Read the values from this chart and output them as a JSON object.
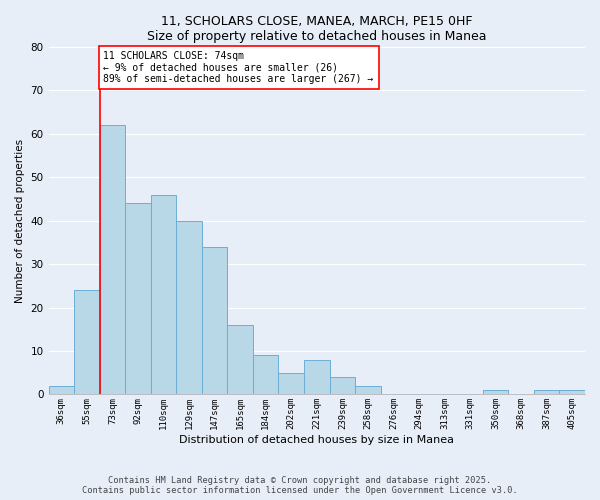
{
  "title1": "11, SCHOLARS CLOSE, MANEA, MARCH, PE15 0HF",
  "title2": "Size of property relative to detached houses in Manea",
  "xlabel": "Distribution of detached houses by size in Manea",
  "ylabel": "Number of detached properties",
  "bins": [
    "36sqm",
    "55sqm",
    "73sqm",
    "92sqm",
    "110sqm",
    "129sqm",
    "147sqm",
    "165sqm",
    "184sqm",
    "202sqm",
    "221sqm",
    "239sqm",
    "258sqm",
    "276sqm",
    "294sqm",
    "313sqm",
    "331sqm",
    "350sqm",
    "368sqm",
    "387sqm",
    "405sqm"
  ],
  "values": [
    2,
    24,
    62,
    44,
    46,
    40,
    34,
    16,
    9,
    5,
    8,
    4,
    2,
    0,
    0,
    0,
    0,
    1,
    0,
    1,
    1
  ],
  "bar_color": "#b8d8e8",
  "bar_edge_color": "#6aaed6",
  "ylim": [
    0,
    80
  ],
  "yticks": [
    0,
    10,
    20,
    30,
    40,
    50,
    60,
    70,
    80
  ],
  "red_line_index": 2,
  "annotation_title": "11 SCHOLARS CLOSE: 74sqm",
  "annotation_line1": "← 9% of detached houses are smaller (26)",
  "annotation_line2": "89% of semi-detached houses are larger (267) →",
  "footer1": "Contains HM Land Registry data © Crown copyright and database right 2025.",
  "footer2": "Contains public sector information licensed under the Open Government Licence v3.0.",
  "bg_color": "#e8eef8",
  "plot_bg_color": "#e8eef8",
  "grid_color": "#ffffff",
  "title_fontsize": 9,
  "subtitle_fontsize": 8.5
}
